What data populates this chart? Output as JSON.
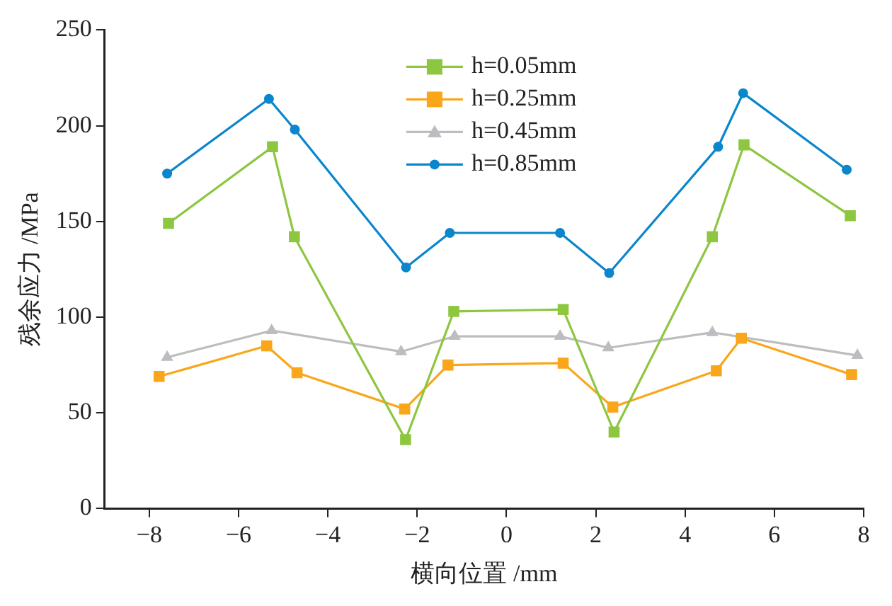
{
  "chart_data": {
    "type": "line",
    "xlabel": "横向位置 /mm",
    "ylabel": "残余应力 /MPa",
    "xlim": [
      -9,
      8
    ],
    "xticks": [
      -8,
      -6,
      -4,
      -2,
      0,
      2,
      4,
      6,
      8
    ],
    "ylim": [
      0,
      250
    ],
    "yticks": [
      0,
      50,
      100,
      150,
      200,
      250
    ],
    "grid": false,
    "legend": "top",
    "series": [
      {
        "name": "h=0.05mm",
        "color": "#8dc63f",
        "marker": "square",
        "x": [
          -7.57,
          -5.24,
          -4.75,
          -2.26,
          -1.18,
          1.27,
          2.41,
          4.61,
          5.32,
          7.7
        ],
        "values": [
          149,
          189,
          142,
          36,
          103,
          104,
          40,
          142,
          190,
          153
        ]
      },
      {
        "name": "h=0.25mm",
        "color": "#f9a61a",
        "marker": "square",
        "x": [
          -7.78,
          -5.37,
          -4.69,
          -2.28,
          -1.31,
          1.27,
          2.38,
          4.7,
          5.26,
          7.73
        ],
        "values": [
          69,
          85,
          71,
          52,
          75,
          76,
          53,
          72,
          89,
          70
        ]
      },
      {
        "name": "h=0.45mm",
        "color": "#bcbdc0",
        "marker": "triangle",
        "x": [
          -7.6,
          -5.26,
          -2.36,
          -1.16,
          1.2,
          2.28,
          4.61,
          7.86
        ],
        "values": [
          79,
          93,
          82,
          90,
          90,
          84,
          92,
          80
        ]
      },
      {
        "name": "h=0.85mm",
        "color": "#0a86cc",
        "marker": "circle",
        "x": [
          -7.6,
          -5.32,
          -4.74,
          -2.25,
          -1.27,
          1.2,
          2.3,
          4.74,
          5.3,
          7.62
        ],
        "values": [
          175,
          214,
          198,
          126,
          144,
          144,
          123,
          189,
          217,
          177
        ]
      }
    ]
  }
}
